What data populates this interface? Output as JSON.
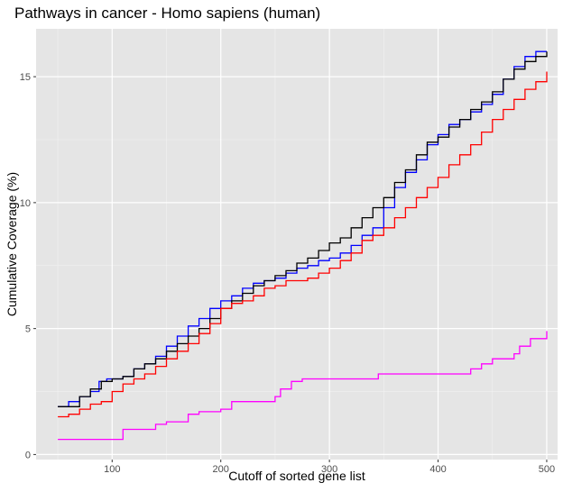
{
  "chart_data": {
    "type": "line",
    "title": "Pathways in cancer - Homo sapiens (human)",
    "xlabel": "Cutoff of sorted gene list",
    "ylabel": "Cumulative Coverage (%)",
    "xlim": [
      30,
      510
    ],
    "ylim": [
      -0.2,
      16.9
    ],
    "x_ticks": [
      100,
      200,
      300,
      400,
      500
    ],
    "y_ticks": [
      0,
      5,
      10,
      15
    ],
    "grid": true,
    "legend": "none",
    "series": [
      {
        "color": "#0000ff",
        "x": [
          50,
          57,
          60,
          70,
          80,
          88,
          95,
          110,
          120,
          130,
          140,
          150,
          160,
          170,
          180,
          190,
          200,
          210,
          220,
          230,
          240,
          250,
          260,
          270,
          280,
          290,
          300,
          310,
          320,
          330,
          340,
          350,
          360,
          370,
          380,
          390,
          400,
          410,
          420,
          430,
          440,
          450,
          460,
          470,
          480,
          490,
          500
        ],
        "y": [
          1.9,
          1.9,
          2.1,
          2.3,
          2.5,
          2.9,
          3.0,
          3.1,
          3.4,
          3.6,
          3.9,
          4.3,
          4.7,
          5.1,
          5.4,
          5.8,
          6.1,
          6.3,
          6.6,
          6.8,
          6.9,
          7.0,
          7.2,
          7.4,
          7.5,
          7.7,
          7.8,
          8.0,
          8.3,
          8.7,
          9.0,
          9.8,
          10.6,
          11.2,
          11.7,
          12.3,
          12.7,
          13.1,
          13.3,
          13.6,
          13.9,
          14.3,
          14.9,
          15.4,
          15.8,
          16.0,
          16.0
        ]
      },
      {
        "color": "#000000",
        "x": [
          50,
          60,
          70,
          80,
          90,
          100,
          110,
          120,
          130,
          140,
          150,
          160,
          170,
          180,
          190,
          200,
          210,
          220,
          230,
          240,
          250,
          260,
          270,
          280,
          290,
          300,
          310,
          320,
          330,
          340,
          350,
          360,
          370,
          380,
          390,
          400,
          410,
          420,
          430,
          440,
          450,
          460,
          470,
          480,
          490,
          500
        ],
        "y": [
          1.9,
          1.9,
          2.3,
          2.6,
          2.9,
          3.0,
          3.1,
          3.4,
          3.6,
          3.8,
          4.1,
          4.4,
          4.7,
          5.0,
          5.4,
          5.8,
          6.1,
          6.4,
          6.7,
          6.9,
          7.1,
          7.3,
          7.6,
          7.8,
          8.1,
          8.4,
          8.6,
          9.0,
          9.4,
          9.8,
          10.2,
          10.8,
          11.3,
          11.9,
          12.4,
          12.6,
          13.0,
          13.3,
          13.7,
          14.0,
          14.4,
          14.9,
          15.3,
          15.6,
          15.8,
          16.0
        ]
      },
      {
        "color": "#ff0000",
        "x": [
          50,
          60,
          70,
          80,
          90,
          100,
          110,
          120,
          130,
          140,
          150,
          160,
          170,
          180,
          190,
          200,
          210,
          220,
          230,
          240,
          250,
          260,
          270,
          280,
          290,
          300,
          310,
          320,
          330,
          340,
          350,
          360,
          370,
          380,
          390,
          400,
          410,
          420,
          430,
          440,
          450,
          460,
          470,
          480,
          490,
          500
        ],
        "y": [
          1.5,
          1.6,
          1.8,
          2.0,
          2.1,
          2.5,
          2.8,
          3.0,
          3.2,
          3.5,
          3.8,
          4.1,
          4.4,
          4.8,
          5.2,
          5.8,
          6.0,
          6.1,
          6.3,
          6.6,
          6.7,
          6.9,
          6.9,
          7.0,
          7.2,
          7.4,
          7.7,
          8.0,
          8.5,
          8.7,
          9.0,
          9.4,
          9.8,
          10.2,
          10.6,
          11.0,
          11.5,
          11.9,
          12.3,
          12.8,
          13.3,
          13.7,
          14.1,
          14.5,
          14.8,
          15.2
        ]
      },
      {
        "color": "#ff00ff",
        "x": [
          50,
          95,
          110,
          120,
          140,
          150,
          170,
          180,
          200,
          210,
          250,
          255,
          265,
          275,
          300,
          345,
          400,
          430,
          440,
          450,
          460,
          470,
          475,
          485,
          500
        ],
        "y": [
          0.6,
          0.6,
          1.0,
          1.0,
          1.2,
          1.3,
          1.6,
          1.7,
          1.8,
          2.1,
          2.3,
          2.6,
          2.9,
          3.0,
          3.0,
          3.2,
          3.2,
          3.4,
          3.6,
          3.8,
          3.8,
          4.0,
          4.3,
          4.6,
          4.9
        ]
      }
    ]
  }
}
